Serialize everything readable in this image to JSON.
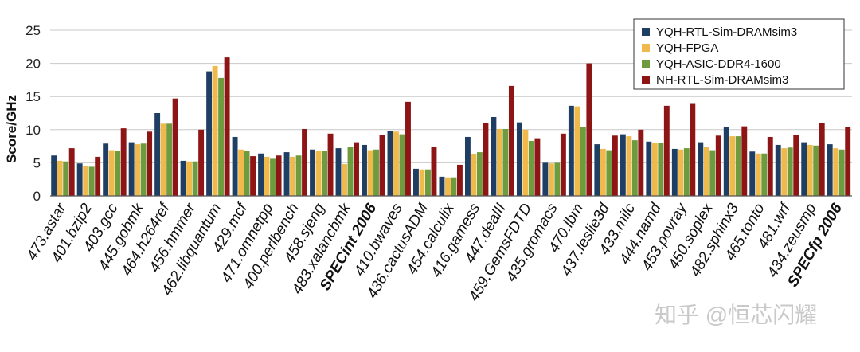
{
  "chart_data": {
    "type": "bar",
    "ylabel": "Score/GHz",
    "ylim": [
      0,
      25
    ],
    "yticks": [
      0,
      5,
      10,
      15,
      20,
      25
    ],
    "grid": true,
    "legend_position": "top-right",
    "categories": [
      "473.astar",
      "401.bzip2",
      "403.gcc",
      "445.gobmk",
      "464.h264ref",
      "456.hmmer",
      "462.libquantum",
      "429.mcf",
      "471.omnetpp",
      "400.perlbench",
      "458.sjeng",
      "483.xalancbmk",
      "SPECint 2006",
      "410.bwaves",
      "436.cactusADM",
      "454.calculix",
      "416.gamess",
      "447.dealII",
      "459.GemsFDTD",
      "435.gromacs",
      "470.lbm",
      "437.leslie3d",
      "433.milc",
      "444.namd",
      "453.povray",
      "450.soplex",
      "482.sphinx3",
      "465.tonto",
      "481.wrf",
      "434.zeusmp",
      "SPECfp 2006"
    ],
    "bold_categories": [
      "SPECint 2006",
      "SPECfp 2006"
    ],
    "series": [
      {
        "name": "YQH-RTL-Sim-DRAMsim3",
        "color": "#1f3e64",
        "values": [
          6.1,
          4.9,
          7.9,
          8.1,
          12.5,
          5.3,
          18.8,
          8.9,
          6.4,
          6.6,
          7.0,
          7.2,
          7.7,
          9.8,
          4.1,
          2.9,
          8.9,
          11.9,
          11.1,
          5.0,
          13.6,
          7.8,
          9.3,
          8.2,
          7.1,
          8.1,
          10.4,
          6.7,
          7.7,
          8.1,
          7.8
        ]
      },
      {
        "name": "YQH-FPGA",
        "color": "#f0b94c",
        "values": [
          5.3,
          4.5,
          6.9,
          7.8,
          10.9,
          5.2,
          19.6,
          7.0,
          5.9,
          5.9,
          6.8,
          4.8,
          6.9,
          9.7,
          4.0,
          2.8,
          6.3,
          10.1,
          10.0,
          4.9,
          13.5,
          7.1,
          9.0,
          8.0,
          7.0,
          7.4,
          9.0,
          6.4,
          7.2,
          7.7,
          7.2
        ]
      },
      {
        "name": "YQH-ASIC-DDR4-1600",
        "color": "#6e9b3e",
        "values": [
          5.2,
          4.4,
          6.8,
          7.9,
          10.9,
          5.2,
          17.8,
          6.8,
          5.6,
          6.1,
          6.8,
          7.4,
          7.0,
          9.3,
          4.0,
          2.8,
          6.6,
          10.1,
          8.3,
          5.0,
          10.4,
          6.9,
          8.4,
          8.0,
          7.2,
          6.9,
          9.0,
          6.4,
          7.3,
          7.6,
          7.0
        ]
      },
      {
        "name": "NH-RTL-Sim-DRAMsim3",
        "color": "#8e1515",
        "values": [
          7.2,
          5.9,
          10.2,
          9.7,
          14.7,
          10.0,
          20.9,
          6.0,
          6.1,
          10.1,
          9.4,
          8.1,
          9.2,
          14.2,
          7.4,
          4.7,
          11.0,
          16.6,
          8.7,
          9.4,
          20.0,
          9.1,
          10.0,
          13.6,
          14.0,
          9.1,
          10.5,
          8.9,
          9.2,
          11.0,
          10.4
        ]
      }
    ]
  },
  "watermark": "知乎 @恒芯闪耀"
}
